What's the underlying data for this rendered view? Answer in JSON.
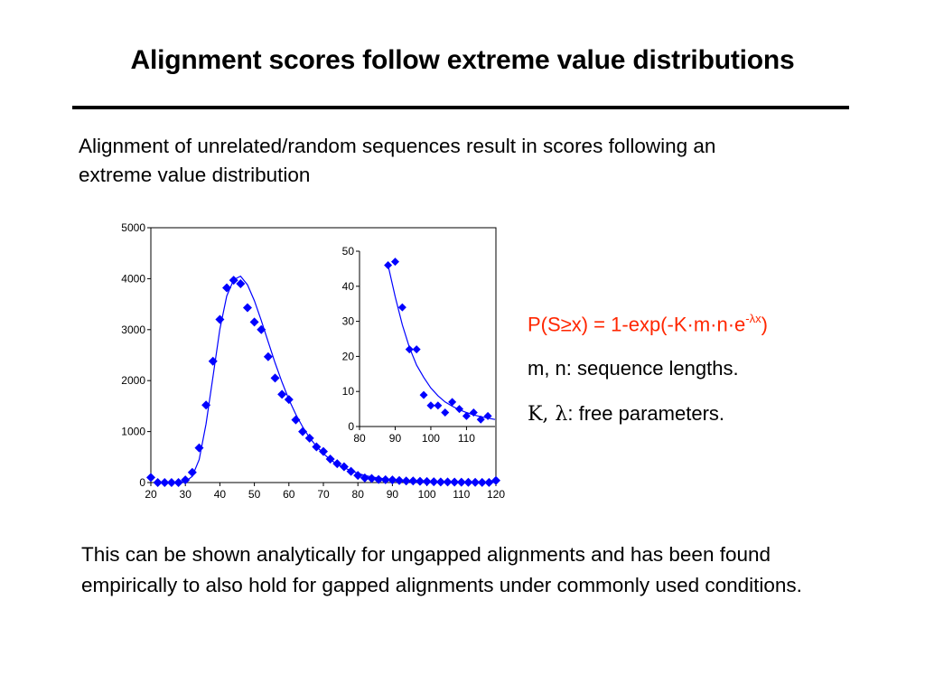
{
  "slide": {
    "title": "Alignment scores follow extreme value distributions",
    "intro": "Alignment of unrelated/random sequences result in scores following an extreme value distribution",
    "formula": {
      "lhs": "P(S≥x) = 1-exp(-K·m·n·e",
      "exponent": "-λx",
      "close": ")"
    },
    "note1": "m, n: sequence lengths.",
    "note2_symbol": "K, λ",
    "note2_text": ": free parameters.",
    "bottom": "This can be shown analytically for ungapped alignments and has been found empirically to also hold for gapped alignments under commonly used conditions."
  },
  "colors": {
    "accent": "#ff2600",
    "series": "#0000ff",
    "rule": "#000000"
  },
  "chart_data": [
    {
      "type": "scatter",
      "title": "",
      "xlabel": "",
      "ylabel": "",
      "xlim": [
        20,
        120
      ],
      "ylim": [
        0,
        5000
      ],
      "xticks": [
        20,
        30,
        40,
        50,
        60,
        70,
        80,
        90,
        100,
        110,
        120
      ],
      "yticks": [
        0,
        1000,
        2000,
        3000,
        4000,
        5000
      ],
      "grid": false,
      "series": [
        {
          "kind": "points",
          "x": [
            20,
            22,
            24,
            26,
            28,
            30,
            32,
            34,
            36,
            38,
            40,
            42,
            44,
            46,
            48,
            50,
            52,
            54,
            56,
            58,
            60,
            62,
            64,
            66,
            68,
            70,
            72,
            74,
            76,
            78,
            80,
            82,
            84,
            86,
            88,
            90,
            92,
            94,
            96,
            98,
            100,
            102,
            104,
            106,
            108,
            110,
            112,
            114,
            116,
            118,
            120
          ],
          "y": [
            100,
            0,
            0,
            0,
            0,
            50,
            200,
            680,
            1520,
            2380,
            3200,
            3820,
            3970,
            3900,
            3430,
            3150,
            3000,
            2470,
            2050,
            1730,
            1630,
            1230,
            1000,
            870,
            700,
            610,
            460,
            370,
            310,
            220,
            140,
            90,
            80,
            60,
            55,
            50,
            40,
            30,
            30,
            25,
            20,
            15,
            12,
            10,
            8,
            6,
            5,
            4,
            3,
            2,
            40
          ]
        },
        {
          "kind": "fit-curve",
          "x": [
            26,
            28,
            30,
            32,
            34,
            36,
            38,
            40,
            42,
            44,
            46,
            48,
            50,
            52,
            54,
            56,
            58,
            60,
            62,
            64,
            66,
            68,
            70,
            72,
            74,
            76,
            78,
            80,
            82,
            84,
            86,
            88,
            90,
            95,
            100,
            105,
            110,
            115,
            120
          ],
          "y": [
            0,
            5,
            20,
            120,
            450,
            1150,
            2080,
            3010,
            3660,
            3980,
            4050,
            3880,
            3570,
            3180,
            2760,
            2350,
            1970,
            1630,
            1340,
            1090,
            880,
            710,
            570,
            450,
            360,
            290,
            230,
            180,
            140,
            110,
            90,
            70,
            55,
            30,
            15,
            8,
            4,
            2,
            1
          ]
        }
      ]
    },
    {
      "type": "scatter",
      "title": "",
      "xlabel": "",
      "ylabel": "",
      "xlim": [
        80,
        118
      ],
      "ylim": [
        0,
        50
      ],
      "xticks": [
        80,
        90,
        100,
        110
      ],
      "yticks": [
        0,
        10,
        20,
        30,
        40,
        50
      ],
      "grid": false,
      "series": [
        {
          "kind": "points",
          "x": [
            88,
            90,
            92,
            94,
            96,
            98,
            100,
            102,
            104,
            106,
            108,
            110,
            112,
            114,
            116
          ],
          "y": [
            46,
            47,
            34,
            22,
            22,
            9,
            6,
            6,
            4,
            7,
            5,
            3,
            4,
            2,
            3
          ]
        },
        {
          "kind": "fit-curve",
          "x": [
            88,
            90,
            92,
            94,
            96,
            98,
            100,
            102,
            104,
            106,
            108,
            110,
            112,
            114,
            116,
            118
          ],
          "y": [
            46,
            37,
            29,
            22.5,
            17.5,
            14,
            11,
            8.8,
            7,
            5.8,
            4.8,
            4,
            3.3,
            2.8,
            2.4,
            2
          ]
        }
      ]
    }
  ]
}
